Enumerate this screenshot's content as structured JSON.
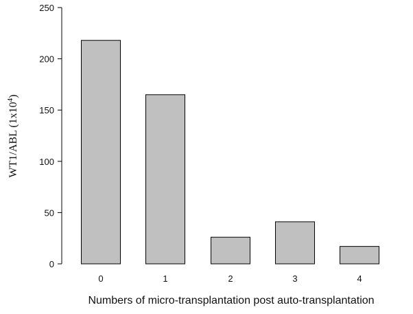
{
  "chart_data": {
    "type": "bar",
    "title": "",
    "categories": [
      "0",
      "1",
      "2",
      "3",
      "4"
    ],
    "values": [
      218,
      165,
      26,
      41,
      17
    ],
    "xlabel": "Numbers of micro-transplantation post auto-transplantation",
    "ylabel": {
      "prefix": "WT1/ABL (1x10",
      "superscript": "4",
      "suffix": ")"
    },
    "ylim": [
      0,
      250
    ],
    "yticks": [
      0,
      50,
      100,
      150,
      200,
      250
    ],
    "grid": false,
    "legend": "none",
    "bar_color": "#c0c0c0",
    "bar_edge_color": "#000000"
  }
}
